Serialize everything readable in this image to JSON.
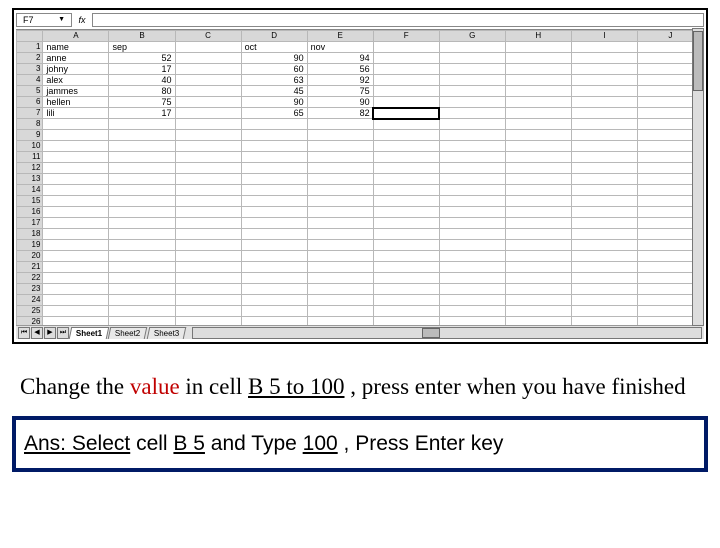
{
  "namebox": {
    "value": "F7",
    "dropdown_glyph": "▼"
  },
  "fx": "fx",
  "columns": [
    "A",
    "B",
    "C",
    "D",
    "E",
    "F",
    "G",
    "H",
    "I",
    "J"
  ],
  "total_rows": 31,
  "data": {
    "r1": {
      "A": "name",
      "B": "sep",
      "C": "",
      "D": "oct",
      "E": "nov"
    },
    "r2": {
      "A": "anne",
      "B": "52",
      "C": "",
      "D": "90",
      "E": "94"
    },
    "r3": {
      "A": "johny",
      "B": "17",
      "C": "",
      "D": "60",
      "E": "56"
    },
    "r4": {
      "A": "alex",
      "B": "40",
      "C": "",
      "D": "63",
      "E": "92"
    },
    "r5": {
      "A": "jammes",
      "B": "80",
      "C": "",
      "D": "45",
      "E": "75"
    },
    "r6": {
      "A": "hellen",
      "B": "75",
      "C": "",
      "D": "90",
      "E": "90"
    },
    "r7": {
      "A": "lili",
      "B": "17",
      "C": "",
      "D": "65",
      "E": "82"
    }
  },
  "active_cell": "F7",
  "tabs": {
    "nav": [
      "⏮",
      "◀",
      "▶",
      "⏭"
    ],
    "items": [
      "Sheet1",
      "Sheet2",
      "Sheet3"
    ],
    "active": 0
  },
  "instruction": {
    "p1a": "Change the ",
    "p1b": "value",
    "p1c": " in cell ",
    "p1d": "B 5 to 100",
    "p1e": "  , press enter when you have finished"
  },
  "answer": {
    "a1": "Ans: Select",
    "a2": " cell ",
    "a3": "B 5",
    "a4": " and Type ",
    "a5": "100",
    "a6": "  , Press Enter key"
  }
}
